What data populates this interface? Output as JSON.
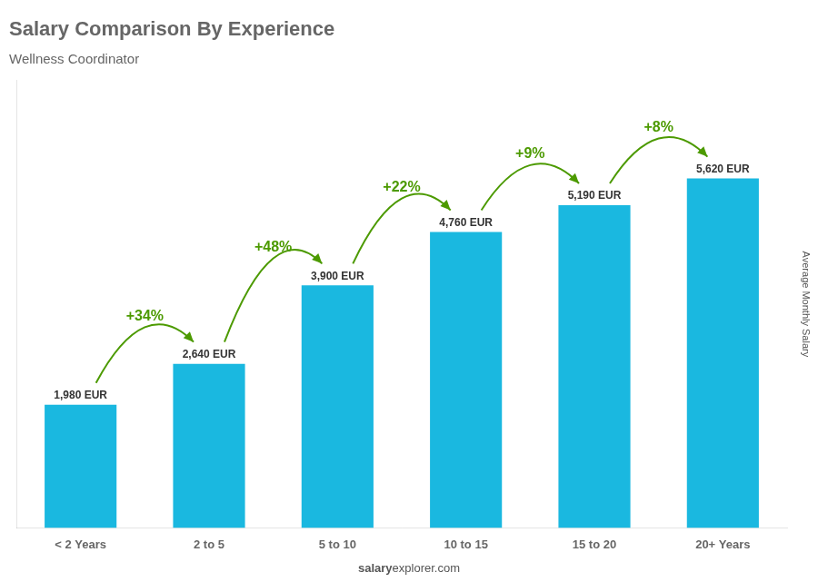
{
  "chart_data": {
    "type": "bar",
    "title": "Salary Comparison By Experience",
    "subtitle": "Wellness Coordinator",
    "ylabel": "Average Monthly Salary",
    "categories": [
      "< 2 Years",
      "2 to 5",
      "5 to 10",
      "10 to 15",
      "15 to 20",
      "20+ Years"
    ],
    "values": [
      1980,
      2640,
      3900,
      4760,
      5190,
      5620
    ],
    "value_labels": [
      "1,980 EUR",
      "2,640 EUR",
      "3,900 EUR",
      "4,760 EUR",
      "5,190 EUR",
      "5,620 EUR"
    ],
    "data_labels": true,
    "annotations": [
      "+34%",
      "+48%",
      "+22%",
      "+9%",
      "+8%"
    ],
    "footer": [
      "salary",
      "explorer.com"
    ],
    "color": "#1ab8e0",
    "ylim": [
      0,
      7200
    ],
    "tick_labels": "x",
    "grid": false
  }
}
